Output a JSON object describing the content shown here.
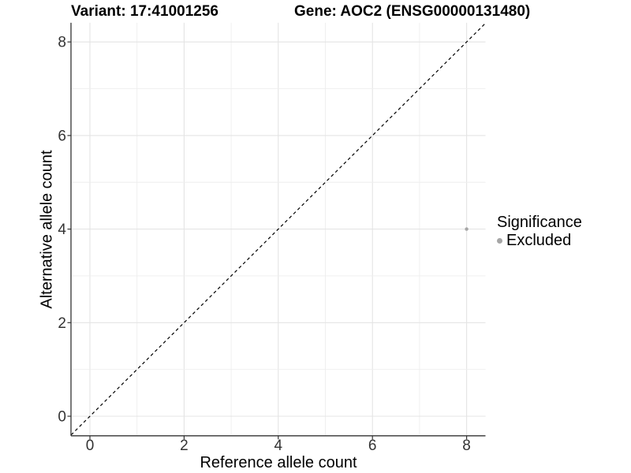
{
  "titles": {
    "variant": "Variant: 17:41001256",
    "gene": "Gene: AOC2 (ENSG00000131480)"
  },
  "axes": {
    "x_label": "Reference allele count",
    "y_label": "Alternative allele count",
    "x_tick_labels": [
      "0",
      "2",
      "4",
      "6",
      "8"
    ],
    "y_tick_labels": [
      "0",
      "2",
      "4",
      "6",
      "8"
    ]
  },
  "legend": {
    "title": "Significance",
    "items": [
      {
        "label": "Excluded",
        "color": "#a6a6a6"
      }
    ]
  },
  "chart_data": {
    "type": "scatter",
    "title": "Variant: 17:41001256   Gene: AOC2 (ENSG00000131480)",
    "xlabel": "Reference allele count",
    "ylabel": "Alternative allele count",
    "xlim": [
      -0.4,
      8.4
    ],
    "ylim": [
      -0.4,
      8.4
    ],
    "x_ticks": [
      0,
      2,
      4,
      6,
      8
    ],
    "y_ticks": [
      0,
      2,
      4,
      6,
      8
    ],
    "grid": "major and minor gridlines at every integer, light gray on white",
    "legend_position": "right",
    "series": [
      {
        "name": "Excluded",
        "color": "#a6a6a6",
        "points": [
          {
            "x": 8,
            "y": 4
          }
        ]
      }
    ],
    "reference_line": {
      "type": "identity (y = x)",
      "style": "dashed",
      "color": "#000000"
    }
  },
  "colors": {
    "background": "#ffffff",
    "axis_line": "#333333",
    "tick_text": "#333333",
    "grid_major": "#e4e4e4",
    "grid_minor": "#eeeeee",
    "title_text": "#000000",
    "excluded_point": "#a6a6a6"
  }
}
